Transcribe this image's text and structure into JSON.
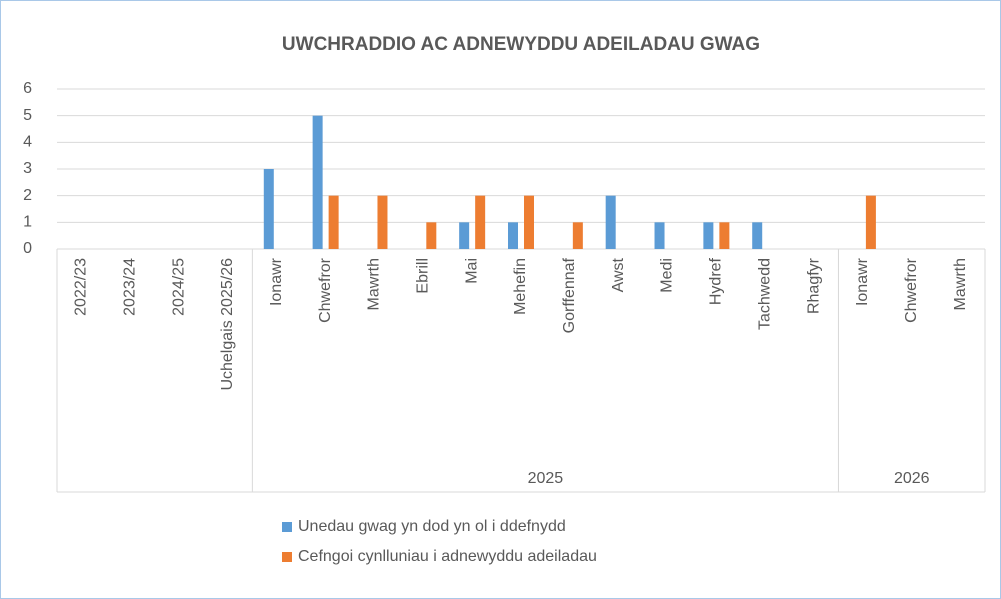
{
  "chart_data": {
    "type": "bar",
    "title": "UWCHRADDIO AC ADNEWYDDU ADEILADAU GWAG",
    "categories": [
      "2022/23",
      "2023/24",
      "2024/25",
      "Uchelgais 2025/26",
      "Ionawr",
      "Chwefror",
      "Mawrth",
      "Ebrill",
      "Mai",
      "Mehefin",
      "Gorffennaf",
      "Awst",
      "Medi",
      "Hydref",
      "Tachwedd",
      "Rhagfyr",
      "Ionawr",
      "Chwefror",
      "Mawrth"
    ],
    "category_groups": [
      {
        "name": "2025",
        "start": 4,
        "end": 15
      },
      {
        "name": "2026",
        "start": 16,
        "end": 18
      }
    ],
    "series": [
      {
        "name": "Unedau gwag yn dod yn ol i ddefnydd",
        "color": "#5b9bd5",
        "values": [
          null,
          null,
          null,
          null,
          3,
          5,
          null,
          null,
          1,
          1,
          null,
          2,
          1,
          1,
          1,
          null,
          null,
          null,
          null
        ]
      },
      {
        "name": "Cefngoi cynlluniau i adnewyddu adeiladau",
        "color": "#ed7d31",
        "values": [
          null,
          null,
          null,
          null,
          null,
          2,
          2,
          1,
          2,
          2,
          1,
          null,
          null,
          1,
          null,
          null,
          2,
          null,
          null
        ]
      }
    ],
    "ylim": [
      0,
      6
    ],
    "yticks": [
      0,
      1,
      2,
      3,
      4,
      5,
      6
    ],
    "grid": true,
    "legend": "bottom"
  }
}
